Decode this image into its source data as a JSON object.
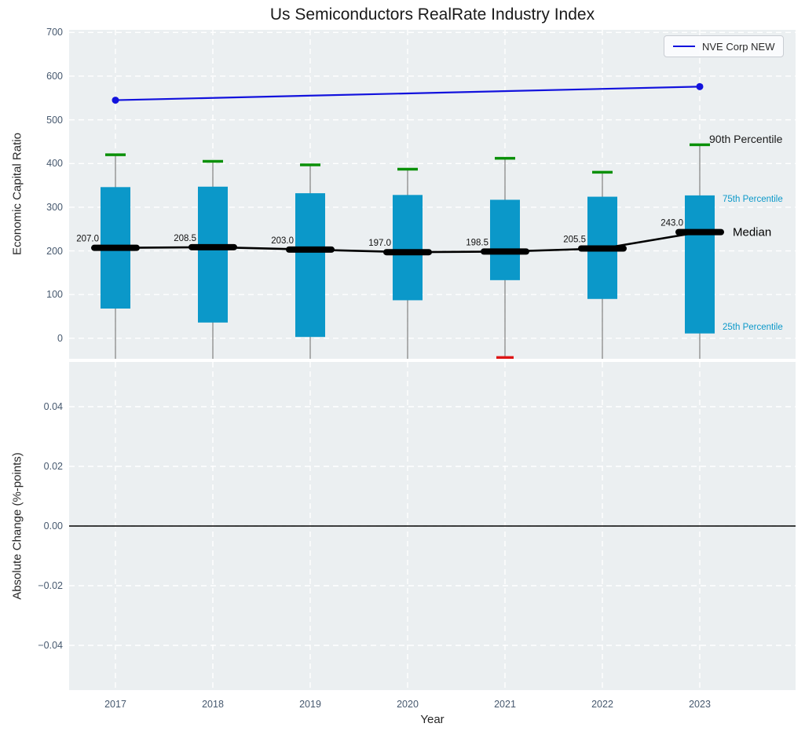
{
  "figure": {
    "title": "Us Semiconductors RealRate Industry Index"
  },
  "legend": {
    "label": "NVE Corp NEW"
  },
  "colors": {
    "axes_background": "#ebeff1",
    "grid": "#ffffff",
    "box_fill": "#0b98c9",
    "cap_high_green": "#0a9008",
    "cap_low_red": "#dd1515",
    "whisker_gray": "#7f7f7f",
    "median_black": "#000000",
    "nve_line_blue": "#1212dd",
    "tick_label": "#46586e",
    "cyan_label": "#0b98c9",
    "text_dark": "#1a1a1a"
  },
  "chart_data": [
    {
      "type": "boxplot",
      "title": "Us Semiconductors RealRate Industry Index",
      "ylabel": "Economic Capital Ratio",
      "xlabel": "",
      "categories": [
        "2017",
        "2018",
        "2019",
        "2020",
        "2021",
        "2022",
        "2023"
      ],
      "ylim": [
        -47,
        706
      ],
      "yticks": [
        0,
        100,
        200,
        300,
        400,
        500,
        600,
        700
      ],
      "ytick_labels": [
        "0",
        "100",
        "200",
        "300",
        "400",
        "500",
        "600",
        "700"
      ],
      "grid": true,
      "legend_position": "upper right",
      "boxes": {
        "p90": [
          420,
          405,
          397,
          387,
          412,
          380,
          443
        ],
        "p75": [
          346,
          347,
          332,
          328,
          317,
          324,
          327
        ],
        "median": [
          207.0,
          208.5,
          203.0,
          197.0,
          198.5,
          205.5,
          243.0
        ],
        "p25": [
          68,
          36,
          3,
          87,
          133,
          90,
          11
        ],
        "p10": [
          null,
          null,
          null,
          null,
          -44,
          null,
          null
        ]
      },
      "median_labels": [
        "207.0",
        "208.5",
        "203.0",
        "197.0",
        "198.5",
        "205.5",
        "243.0"
      ],
      "overlay_line": {
        "name": "NVE Corp NEW",
        "points": [
          {
            "x": "2017",
            "y": 545
          },
          {
            "x": "2023",
            "y": 576
          }
        ]
      },
      "side_labels": [
        {
          "text": "90th Percentile",
          "color": "#1a1a1a",
          "size": 14,
          "x": 815,
          "y": 139
        },
        {
          "text": "75th Percentile",
          "color": "#0b98c9",
          "size": 11.5,
          "x": 832,
          "y": 216
        },
        {
          "text": "Median",
          "color": "#000000",
          "size": 15,
          "x": 845,
          "y": 258
        },
        {
          "text": "25th Percentile",
          "color": "#0b98c9",
          "size": 11.5,
          "x": 832,
          "y": 379
        }
      ]
    },
    {
      "type": "line",
      "title": "",
      "ylabel": "Absolute Change (%-points)",
      "xlabel": "Year",
      "categories": [
        "2017",
        "2018",
        "2019",
        "2020",
        "2021",
        "2022",
        "2023"
      ],
      "ylim": [
        -0.055,
        0.055
      ],
      "yticks": [
        0.04,
        0.02,
        0.0,
        -0.02,
        -0.04
      ],
      "ytick_labels": [
        "0.04",
        "0.02",
        "0.00",
        "−0.02",
        "−0.04"
      ],
      "grid": true,
      "zero_line": 0.0,
      "series": []
    }
  ]
}
